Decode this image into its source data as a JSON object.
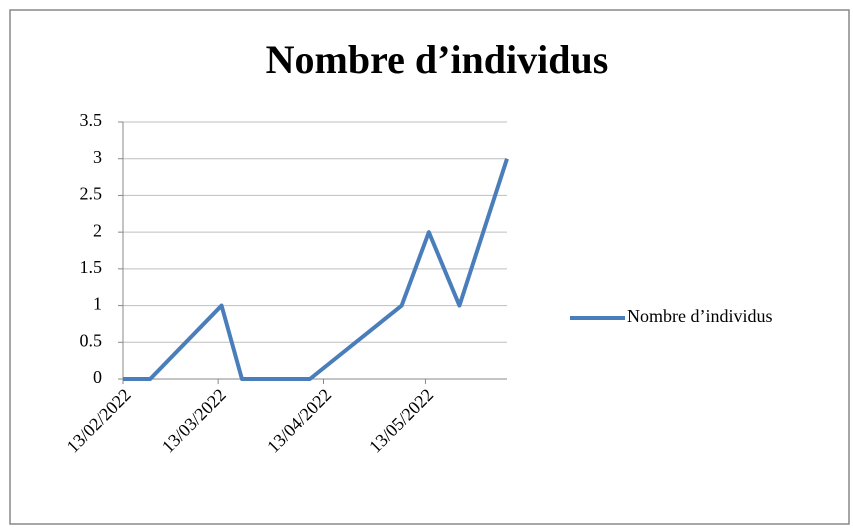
{
  "chart_data": {
    "type": "line",
    "title": "Nombre d’individus",
    "x": [
      "2022-02-13",
      "2022-02-21",
      "2022-03-14",
      "2022-03-20",
      "2022-04-09",
      "2022-05-06",
      "2022-05-14",
      "2022-05-23",
      "2022-06-06"
    ],
    "series": [
      {
        "name": "Nombre d’individus",
        "color": "#4a7ebb",
        "values": [
          0,
          0,
          1,
          0,
          0,
          1,
          2,
          1,
          3
        ]
      }
    ],
    "xlim": [
      "2022-02-13",
      "2022-06-06"
    ],
    "xticks": [
      {
        "value": "2022-02-13",
        "label": "13/02/2022"
      },
      {
        "value": "2022-03-13",
        "label": "13/03/2022"
      },
      {
        "value": "2022-04-13",
        "label": "13/04/2022"
      },
      {
        "value": "2022-05-13",
        "label": "13/05/2022"
      }
    ],
    "ylim": [
      0,
      3.5
    ],
    "yticks": [
      0,
      0.5,
      1,
      1.5,
      2,
      2.5,
      3,
      3.5
    ],
    "grid": true,
    "legend": "right"
  }
}
